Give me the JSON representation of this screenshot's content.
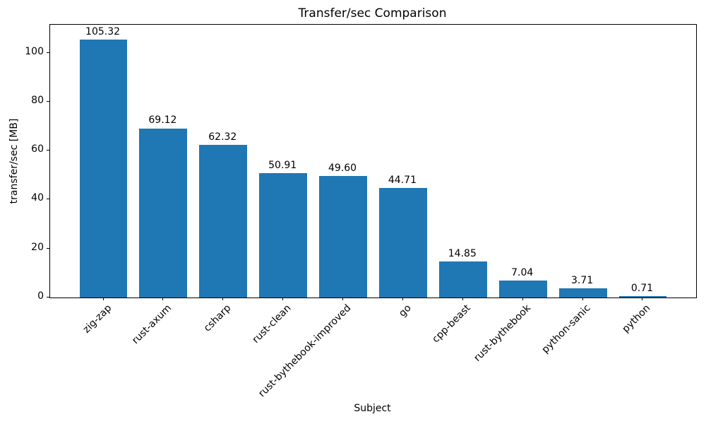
{
  "chart_data": {
    "type": "bar",
    "title": "Transfer/sec Comparison",
    "xlabel": "Subject",
    "ylabel": "transfer/sec [MB]",
    "categories": [
      "zig-zap",
      "rust-axum",
      "csharp",
      "rust-clean",
      "rust-bythebook-improved",
      "go",
      "cpp-beast",
      "rust-bythebook",
      "python-sanic",
      "python"
    ],
    "values": [
      105.32,
      69.12,
      62.32,
      50.91,
      49.6,
      44.71,
      14.85,
      7.04,
      3.71,
      0.71
    ],
    "value_labels": [
      "105.32",
      "69.12",
      "62.32",
      "50.91",
      "49.60",
      "44.71",
      "14.85",
      "7.04",
      "3.71",
      "0.71"
    ],
    "yticks": [
      0,
      20,
      40,
      60,
      80,
      100
    ],
    "ytick_labels": [
      "0",
      "20",
      "40",
      "60",
      "80",
      "100"
    ],
    "ylim": [
      0,
      111.4
    ],
    "bar_color": "#1f77b4",
    "bar_width_ratio": 0.8,
    "grid": false,
    "legend": null
  }
}
